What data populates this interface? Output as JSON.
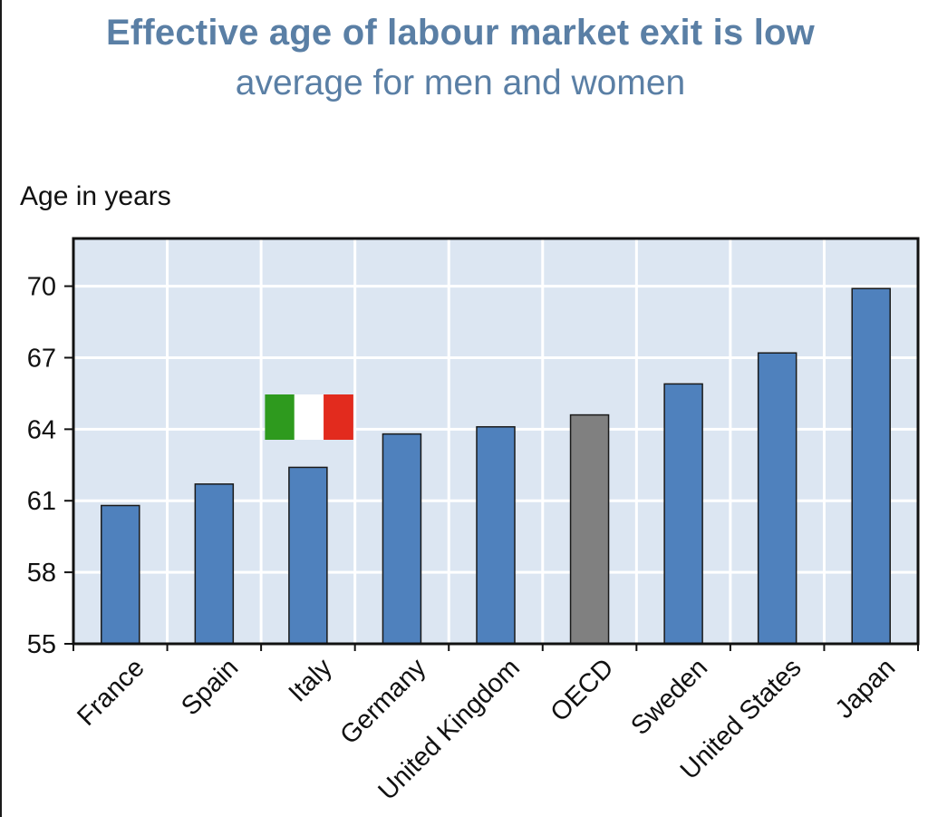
{
  "header": {
    "title": "Effective age of labour market exit is low",
    "subtitle": "average for men and women"
  },
  "chart_data": {
    "type": "bar",
    "title": "Effective age of labour market exit is low",
    "subtitle": "average for men and women",
    "ylabel": "Age in years",
    "xlabel": "",
    "categories": [
      "France",
      "Spain",
      "Italy",
      "Germany",
      "United Kingdom",
      "OECD",
      "Sweden",
      "United States",
      "Japan"
    ],
    "values": [
      60.8,
      61.7,
      62.4,
      63.8,
      64.1,
      64.6,
      65.9,
      67.2,
      69.9
    ],
    "ylim": [
      55,
      72
    ],
    "yticks": [
      55,
      58,
      61,
      64,
      67,
      70
    ],
    "grid": true,
    "colors": {
      "bar": "#4f81bd",
      "highlight_bar": "#808080",
      "plot_background": "#dce6f2",
      "gridline": "#ffffff",
      "title": "#5a7fa5"
    },
    "highlight_category": "OECD",
    "flag_annotation": {
      "category": "Italy",
      "colors": [
        "#2e9a1e",
        "#ffffff",
        "#e22b1e"
      ]
    }
  }
}
